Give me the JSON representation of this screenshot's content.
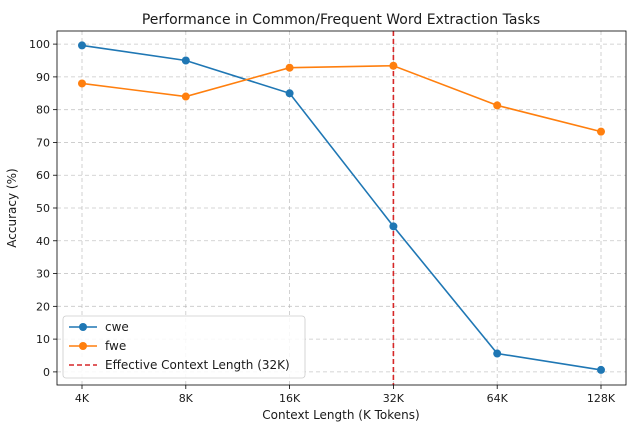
{
  "chart_data": {
    "type": "line",
    "title": "Performance in Common/Frequent Word Extraction Tasks",
    "xlabel": "Context Length (K Tokens)",
    "ylabel": "Accuracy (%)",
    "categories": [
      "4K",
      "8K",
      "16K",
      "32K",
      "64K",
      "128K"
    ],
    "ylim": [
      -4,
      104
    ],
    "yticks": [
      0,
      10,
      20,
      30,
      40,
      50,
      60,
      70,
      80,
      90,
      100
    ],
    "grid": true,
    "legend_position": "lower-left",
    "series": [
      {
        "name": "cwe",
        "color": "#1f77b4",
        "values": [
          99.6,
          95.0,
          85.0,
          44.4,
          5.6,
          0.6
        ]
      },
      {
        "name": "fwe",
        "color": "#ff7f0e",
        "values": [
          88.0,
          84.0,
          92.8,
          93.4,
          81.3,
          73.3
        ]
      }
    ],
    "reference_line": {
      "label": "Effective Context Length (32K)",
      "category": "32K",
      "color": "#d62728"
    }
  }
}
